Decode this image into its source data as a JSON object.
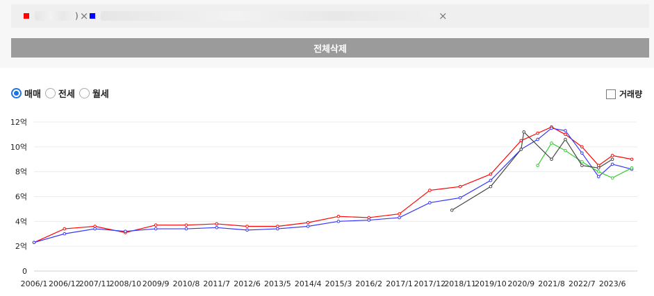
{
  "selection": {
    "items": [
      {
        "color": "#ff0000",
        "label_suffix": ")"
      },
      {
        "color": "#0000ff",
        "label_suffix": ""
      }
    ],
    "close_glyph": "×"
  },
  "delete_all_label": "전체삭제",
  "deal_types": [
    {
      "label": "매매",
      "selected": true
    },
    {
      "label": "전세",
      "selected": false
    },
    {
      "label": "월세",
      "selected": false
    }
  ],
  "volume_toggle": {
    "label": "거래량",
    "checked": false
  },
  "chart_data": {
    "type": "line",
    "ylim": [
      0,
      12
    ],
    "y_ticks": [
      {
        "value": 0,
        "label": "0"
      },
      {
        "value": 2,
        "label": "2억"
      },
      {
        "value": 4,
        "label": "4억"
      },
      {
        "value": 6,
        "label": "6억"
      },
      {
        "value": 8,
        "label": "8억"
      },
      {
        "value": 10,
        "label": "10억"
      },
      {
        "value": 12,
        "label": "12억"
      }
    ],
    "x_ticks": [
      "2006/1",
      "2006/12",
      "2007/11",
      "2008/10",
      "2009/9",
      "2010/8",
      "2011/7",
      "2012/6",
      "2013/5",
      "2014/4",
      "2015/3",
      "2016/2",
      "2017/1",
      "2017/12",
      "2018/11",
      "2019/10",
      "2020/9",
      "2021/8",
      "2022/7",
      "2023/6"
    ],
    "x_range": [
      "2006/1",
      "2024/3"
    ],
    "series": [
      {
        "color": "#ff0000",
        "x": [
          "2006/1",
          "2006/12",
          "2007/11",
          "2008/10",
          "2009/9",
          "2010/8",
          "2011/7",
          "2012/6",
          "2013/5",
          "2014/4",
          "2015/3",
          "2016/2",
          "2017/1",
          "2017/12",
          "2018/11",
          "2019/10",
          "2020/9",
          "2021/3",
          "2021/8",
          "2022/1",
          "2022/7",
          "2023/1",
          "2023/6",
          "2024/1"
        ],
        "y": [
          2.3,
          3.4,
          3.6,
          3.1,
          3.7,
          3.7,
          3.8,
          3.6,
          3.6,
          3.9,
          4.4,
          4.3,
          4.6,
          6.5,
          6.8,
          7.8,
          10.5,
          11.1,
          11.6,
          11.0,
          10.0,
          8.5,
          9.3,
          9.0
        ]
      },
      {
        "color": "#3333ff",
        "x": [
          "2006/1",
          "2006/12",
          "2007/11",
          "2008/10",
          "2009/9",
          "2010/8",
          "2011/7",
          "2012/6",
          "2013/5",
          "2014/4",
          "2015/3",
          "2016/2",
          "2017/1",
          "2017/12",
          "2018/11",
          "2019/10",
          "2020/9",
          "2021/3",
          "2021/8",
          "2022/1",
          "2022/7",
          "2023/1",
          "2023/6",
          "2024/1"
        ],
        "y": [
          2.3,
          3.0,
          3.4,
          3.2,
          3.4,
          3.4,
          3.5,
          3.3,
          3.4,
          3.6,
          4.0,
          4.1,
          4.3,
          5.5,
          5.9,
          7.3,
          9.8,
          10.6,
          11.5,
          11.3,
          9.5,
          7.6,
          8.6,
          8.2
        ]
      },
      {
        "color": "#33cc33",
        "x": [
          "2021/3",
          "2021/8",
          "2022/1",
          "2022/7",
          "2023/1",
          "2023/6",
          "2024/1"
        ],
        "y": [
          8.5,
          10.3,
          9.7,
          8.8,
          8.0,
          7.5,
          8.3
        ]
      },
      {
        "color": "#444444",
        "x": [
          "2018/8",
          "2019/10",
          "2020/9",
          "2020/10",
          "2021/8",
          "2022/1",
          "2022/7",
          "2023/1",
          "2023/6"
        ],
        "y": [
          4.9,
          6.8,
          9.8,
          11.2,
          9.0,
          10.6,
          8.5,
          8.3,
          9.0
        ]
      }
    ]
  }
}
